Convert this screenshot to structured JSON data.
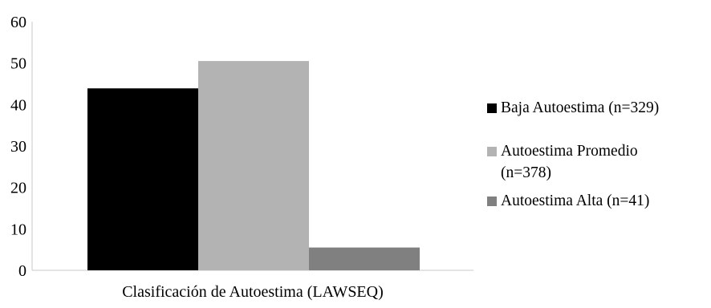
{
  "chart_data": {
    "type": "bar",
    "title": "",
    "xlabel": "Clasificación de Autoestima (LAWSEQ)",
    "ylabel": "",
    "categories": [
      "Clasificación de Autoestima (LAWSEQ)"
    ],
    "series": [
      {
        "name": "Baja Autoestima (n=329)",
        "values": [
          43.9
        ],
        "color": "#000000"
      },
      {
        "name": "Autoestima Promedio (n=378)",
        "values": [
          50.5
        ],
        "color": "#b3b3b3"
      },
      {
        "name": "Autoestima Alta (n=41)",
        "values": [
          5.5
        ],
        "color": "#808080"
      }
    ],
    "ylim": [
      0,
      60
    ],
    "yticks": [
      "0",
      "10",
      "20",
      "30",
      "40",
      "50",
      "60"
    ],
    "grid": false,
    "legend_position": "right"
  }
}
